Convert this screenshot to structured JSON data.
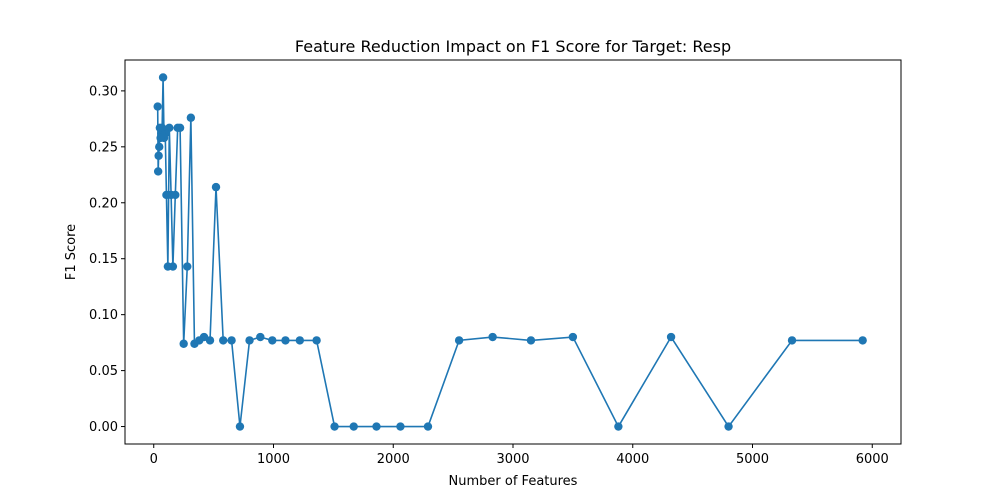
{
  "chart_data": {
    "type": "line",
    "title": "Feature Reduction Impact on F1 Score for Target: Resp",
    "xlabel": "Number of Features",
    "ylabel": "F1 Score",
    "xlim": [
      -240,
      6240
    ],
    "ylim": [
      -0.0156,
      0.3276
    ],
    "xticks": [
      0,
      1000,
      2000,
      3000,
      4000,
      5000,
      6000
    ],
    "xtick_labels": [
      "0",
      "1000",
      "2000",
      "3000",
      "4000",
      "5000",
      "6000"
    ],
    "yticks": [
      0.0,
      0.05,
      0.1,
      0.15,
      0.2,
      0.25,
      0.3
    ],
    "ytick_labels": [
      "0.00",
      "0.05",
      "0.10",
      "0.15",
      "0.20",
      "0.25",
      "0.30"
    ],
    "grid": false,
    "color": "#1f77b4",
    "marker": "circle",
    "series": [
      {
        "x": [
          5920,
          5330,
          4800,
          4320,
          3880,
          3500,
          3150,
          2830,
          2550,
          2290,
          2060,
          1860,
          1670,
          1510,
          1360,
          1220,
          1100,
          990,
          890,
          800,
          720,
          650,
          580,
          520,
          470,
          420,
          380,
          340,
          310,
          280,
          250,
          220,
          200,
          180,
          160,
          145,
          130,
          118,
          106,
          96,
          86,
          78,
          70,
          63,
          57,
          51,
          46,
          41,
          37,
          33
        ],
        "y": [
          0.077,
          0.077,
          0.0,
          0.08,
          0.0,
          0.08,
          0.077,
          0.08,
          0.077,
          0.0,
          0.0,
          0.0,
          0.0,
          0.0,
          0.077,
          0.077,
          0.077,
          0.077,
          0.08,
          0.077,
          0.0,
          0.077,
          0.077,
          0.214,
          0.077,
          0.08,
          0.077,
          0.074,
          0.276,
          0.143,
          0.074,
          0.267,
          0.267,
          0.207,
          0.143,
          0.207,
          0.267,
          0.143,
          0.207,
          0.262,
          0.258,
          0.312,
          0.267,
          0.262,
          0.258,
          0.267,
          0.25,
          0.242,
          0.228,
          0.286
        ]
      }
    ]
  }
}
